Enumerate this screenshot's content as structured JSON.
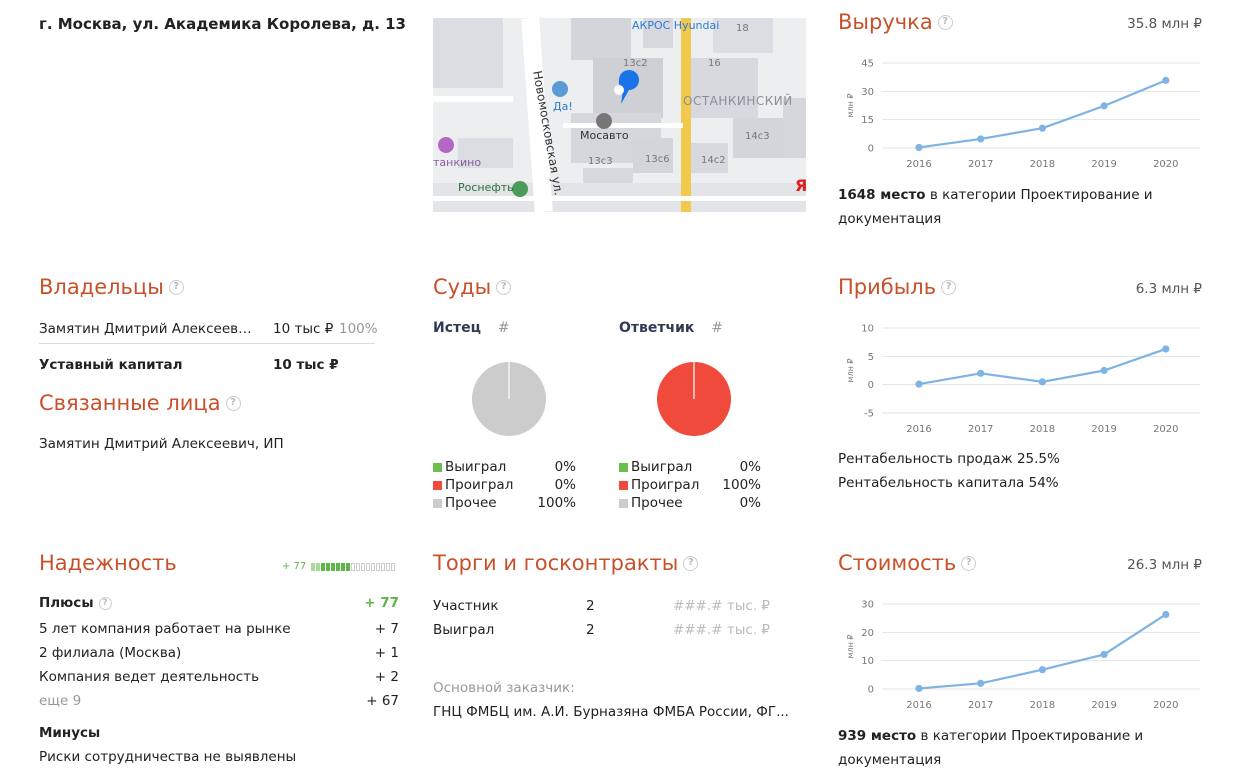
{
  "address": "г. Москва, ул. Академика Королева, д. 13",
  "map": {
    "labels": {
      "brand": "АКРОС Hyundai",
      "b18": "18",
      "b13c2": "13с2",
      "b16": "16",
      "street": "Новомосковская ул.",
      "district": "ОСТАНКИНСКИЙ",
      "da": "Да!",
      "mosavto": "Мосавто",
      "b14c3": "14с3",
      "ostankino": "танкино",
      "b13c3": "13с3",
      "b13c6": "13с6",
      "b14c2": "14с2",
      "rosneft": "Роснефть",
      "ya": "Я"
    },
    "colors": {
      "road": "#f2c94c",
      "building": "#d9d9de",
      "ground": "#eceef0",
      "pin": "#1a73e8"
    }
  },
  "revenue": {
    "title": "Выручка",
    "total": "35.8 млн ₽",
    "rank": "1648 место",
    "rank_rest": " в категории Проектирование и",
    "rank_line2": "документация"
  },
  "profit": {
    "title": "Прибыль",
    "total": "6.3 млн ₽",
    "margin_sales": "Рентабельность продаж 25.5%",
    "margin_capital": "Рентабельность капитала 54%"
  },
  "value": {
    "title": "Стоимость",
    "total": "26.3 млн ₽",
    "rank": "939 место",
    "rank_rest": " в категории Проектирование и",
    "rank_line2": "документация"
  },
  "chart_data": [
    {
      "type": "line",
      "ylabel": "млн ₽",
      "x": [
        "2016",
        "2017",
        "2018",
        "2019",
        "2020"
      ],
      "y": [
        0.3,
        4.8,
        10.5,
        22.3,
        35.8
      ],
      "ylim": [
        0,
        45
      ],
      "yticks": [
        0,
        15,
        30,
        45
      ],
      "grid": true,
      "color": "#7eb3e3"
    },
    {
      "type": "line",
      "ylabel": "млн ₽",
      "x": [
        "2016",
        "2017",
        "2018",
        "2019",
        "2020"
      ],
      "y": [
        0.1,
        2.0,
        0.5,
        2.5,
        6.3
      ],
      "ylim": [
        -5,
        10
      ],
      "yticks": [
        -5,
        0,
        5,
        10
      ],
      "grid": true,
      "color": "#7eb3e3"
    },
    {
      "type": "line",
      "ylabel": "млн ₽",
      "x": [
        "2016",
        "2017",
        "2018",
        "2019",
        "2020"
      ],
      "y": [
        0.2,
        2.0,
        6.8,
        12.2,
        26.3
      ],
      "ylim": [
        0,
        30
      ],
      "yticks": [
        0,
        10,
        20,
        30
      ],
      "grid": true,
      "color": "#7eb3e3"
    }
  ],
  "owners": {
    "title": "Владельцы",
    "rows": [
      {
        "name": "Замятин Дмитрий Алексеев…",
        "amount": "10 тыс ₽",
        "share": "100%"
      }
    ],
    "capital_label": "Уставный капитал",
    "capital_value": "10 тыс ₽"
  },
  "related": {
    "title": "Связанные лица",
    "items": [
      "Замятин Дмитрий Алексеевич, ИП"
    ]
  },
  "courts": {
    "title": "Суды",
    "plaintiff": {
      "label": "Истец",
      "hash": "#",
      "won": "Выиграл",
      "won_pct": "0%",
      "lost": "Проиграл",
      "lost_pct": "0%",
      "other": "Прочее",
      "other_pct": "100%",
      "fractions": {
        "won": 0,
        "lost": 0,
        "other": 1
      }
    },
    "defendant": {
      "label": "Ответчик",
      "hash": "#",
      "won": "Выиграл",
      "won_pct": "0%",
      "lost": "Проиграл",
      "lost_pct": "100%",
      "other": "Прочее",
      "other_pct": "0%",
      "fractions": {
        "won": 0,
        "lost": 1,
        "other": 0
      }
    },
    "colors": {
      "won": "#6cbf4f",
      "lost": "#ef4a3c",
      "other": "#cccccc"
    }
  },
  "reliability": {
    "title": "Надежность",
    "score": "+ 77",
    "filled_segments": 8,
    "total_segments": 17,
    "plus_title": "Плюсы",
    "plus_total": "+ 77",
    "plus_items": [
      {
        "label": "5 лет компания работает на рынке",
        "value": "+ 7"
      },
      {
        "label": "2 филиала (Москва)",
        "value": "+ 1"
      },
      {
        "label": "Компания ведет деятельность",
        "value": "+ 2"
      }
    ],
    "more_label": "еще 9",
    "more_value": "+ 67",
    "minus_title": "Минусы",
    "minus_text": "Риски сотрудничества не выявлены"
  },
  "tenders": {
    "title": "Торги и госконтракты",
    "rows": [
      {
        "label": "Участник",
        "count": "2",
        "amount": "###.# тыс. ₽"
      },
      {
        "label": "Выиграл",
        "count": "2",
        "amount": "###.# тыс. ₽"
      }
    ],
    "customer_label": "Основной заказчик:",
    "customer_name": "ГНЦ ФМБЦ им. А.И. Бурназяна ФМБА России, ФГ..."
  }
}
